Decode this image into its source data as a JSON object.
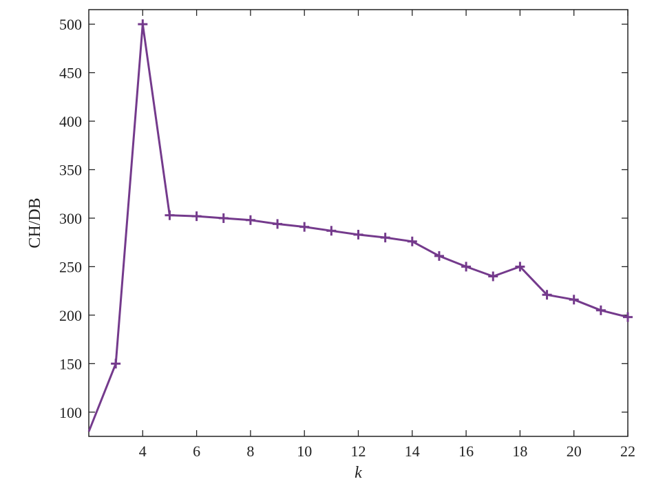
{
  "chart_data": {
    "type": "line",
    "title": "",
    "xlabel": "k",
    "ylabel": "CH/DB",
    "xlim": [
      2,
      22
    ],
    "ylim": [
      75,
      515
    ],
    "xticks": [
      4,
      6,
      8,
      10,
      12,
      14,
      16,
      18,
      20,
      22
    ],
    "yticks": [
      100,
      150,
      200,
      250,
      300,
      350,
      400,
      450,
      500
    ],
    "grid": false,
    "legend": "none",
    "marker": "plus",
    "color": "#743A8C",
    "series": [
      {
        "x": [
          2,
          3,
          4,
          5,
          6,
          7,
          8,
          9,
          10,
          11,
          12,
          13,
          14,
          15,
          16,
          17,
          18,
          19,
          20,
          21,
          22
        ],
        "y": [
          80,
          150,
          500,
          303,
          302,
          300,
          298,
          294,
          291,
          287,
          283,
          280,
          276,
          261,
          250,
          240,
          250,
          221,
          216,
          205,
          198
        ]
      }
    ]
  }
}
